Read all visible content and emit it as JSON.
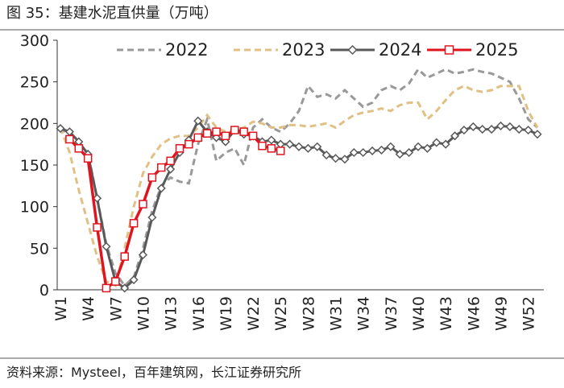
{
  "chart_data": {
    "type": "line",
    "title": "图 35：基建水泥直供量（万吨）",
    "source": "资料来源：Mysteel，百年建筑网，长江证券研究所",
    "categories": [
      "W1",
      null,
      null,
      "W4",
      null,
      null,
      "W7",
      null,
      null,
      "W10",
      null,
      null,
      "W13",
      null,
      null,
      "W16",
      null,
      null,
      "W19",
      null,
      null,
      "W22",
      null,
      null,
      "W25",
      null,
      null,
      "W28",
      null,
      null,
      "W31",
      null,
      null,
      "W34",
      null,
      null,
      "W37",
      null,
      null,
      "W40",
      null,
      null,
      "W43",
      null,
      null,
      "W46",
      null,
      null,
      "W49",
      null,
      null,
      "W52",
      null
    ],
    "ylim": [
      0,
      300
    ],
    "yticks": [
      0,
      50,
      100,
      150,
      200,
      250,
      300
    ],
    "legend": "top",
    "series": [
      {
        "name": "2022",
        "color": "#999999",
        "style": "dashed",
        "marker": "none",
        "values": [
          195,
          185,
          175,
          165,
          110,
          55,
          20,
          5,
          15,
          50,
          95,
          125,
          135,
          130,
          128,
          175,
          205,
          155,
          165,
          170,
          150,
          195,
          205,
          195,
          190,
          200,
          215,
          245,
          232,
          235,
          230,
          240,
          230,
          220,
          225,
          240,
          245,
          240,
          248,
          265,
          255,
          260,
          265,
          260,
          262,
          265,
          262,
          260,
          255,
          250,
          230,
          205,
          195
        ]
      },
      {
        "name": "2023",
        "color": "#e0c084",
        "style": "dashed",
        "marker": "none",
        "values": [
          195,
          165,
          120,
          80,
          40,
          10,
          5,
          50,
          100,
          140,
          160,
          175,
          182,
          185,
          185,
          195,
          210,
          195,
          190,
          192,
          195,
          202,
          200,
          195,
          195,
          198,
          198,
          196,
          198,
          200,
          195,
          203,
          210,
          213,
          215,
          218,
          215,
          222,
          225,
          225,
          205,
          215,
          228,
          240,
          245,
          240,
          238,
          240,
          245,
          245,
          245,
          215,
          195
        ]
      },
      {
        "name": "2024",
        "color": "#595959",
        "style": "solid",
        "marker": "diamond",
        "values": [
          194,
          190,
          178,
          163,
          110,
          52,
          10,
          2,
          12,
          42,
          87,
          122,
          145,
          165,
          180,
          203,
          190,
          183,
          178,
          192,
          187,
          185,
          178,
          180,
          175,
          175,
          172,
          170,
          172,
          162,
          158,
          157,
          165,
          165,
          167,
          168,
          172,
          163,
          165,
          172,
          170,
          177,
          175,
          185,
          192,
          196,
          193,
          193,
          197,
          196,
          193,
          192,
          187
        ]
      },
      {
        "name": "2025",
        "color": "#e0141e",
        "style": "solid",
        "marker": "square",
        "values": [
          null,
          181,
          170,
          158,
          75,
          2,
          10,
          40,
          80,
          103,
          135,
          147,
          155,
          170,
          175,
          183,
          188,
          190,
          185,
          192,
          190,
          185,
          173,
          170,
          167,
          null,
          null,
          null,
          null,
          null,
          null,
          null,
          null,
          null,
          null,
          null,
          null,
          null,
          null,
          null,
          null,
          null,
          null,
          null,
          null,
          null,
          null,
          null,
          null,
          null,
          null,
          null,
          null
        ]
      }
    ]
  }
}
